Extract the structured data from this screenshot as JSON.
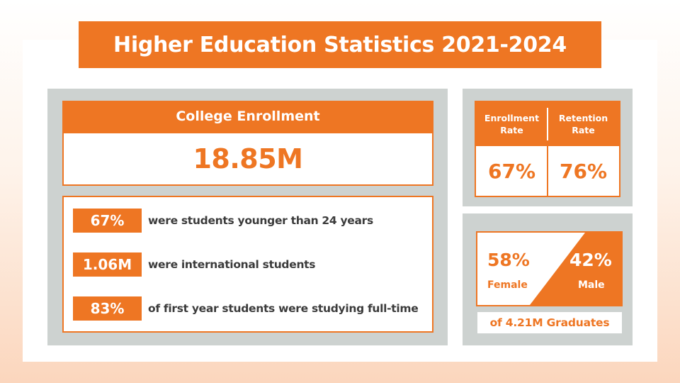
{
  "title": "Higher Education Statistics 2021-2024",
  "enrollment": {
    "header": "College Enrollment",
    "value": "18.85M"
  },
  "facts": [
    {
      "value": "67%",
      "text": "were students younger than 24 years"
    },
    {
      "value": "1.06M",
      "text": "were international students"
    },
    {
      "value": "83%",
      "text": "of first year students were studying full-time"
    }
  ],
  "rates": {
    "enrollment": {
      "label": [
        "Enrollment",
        "Rate"
      ],
      "value": "67%"
    },
    "retention": {
      "label": [
        "Retention",
        "Rate"
      ],
      "value": "76%"
    }
  },
  "graduates": {
    "female": {
      "value": "58%",
      "label": "Female"
    },
    "male": {
      "value": "42%",
      "label": "Male"
    },
    "caption": "of 4.21M Graduates"
  },
  "colors": {
    "accent": "#ee7623",
    "panel_gray": "#cdd2d0",
    "text_dark": "#3b3b3b"
  }
}
